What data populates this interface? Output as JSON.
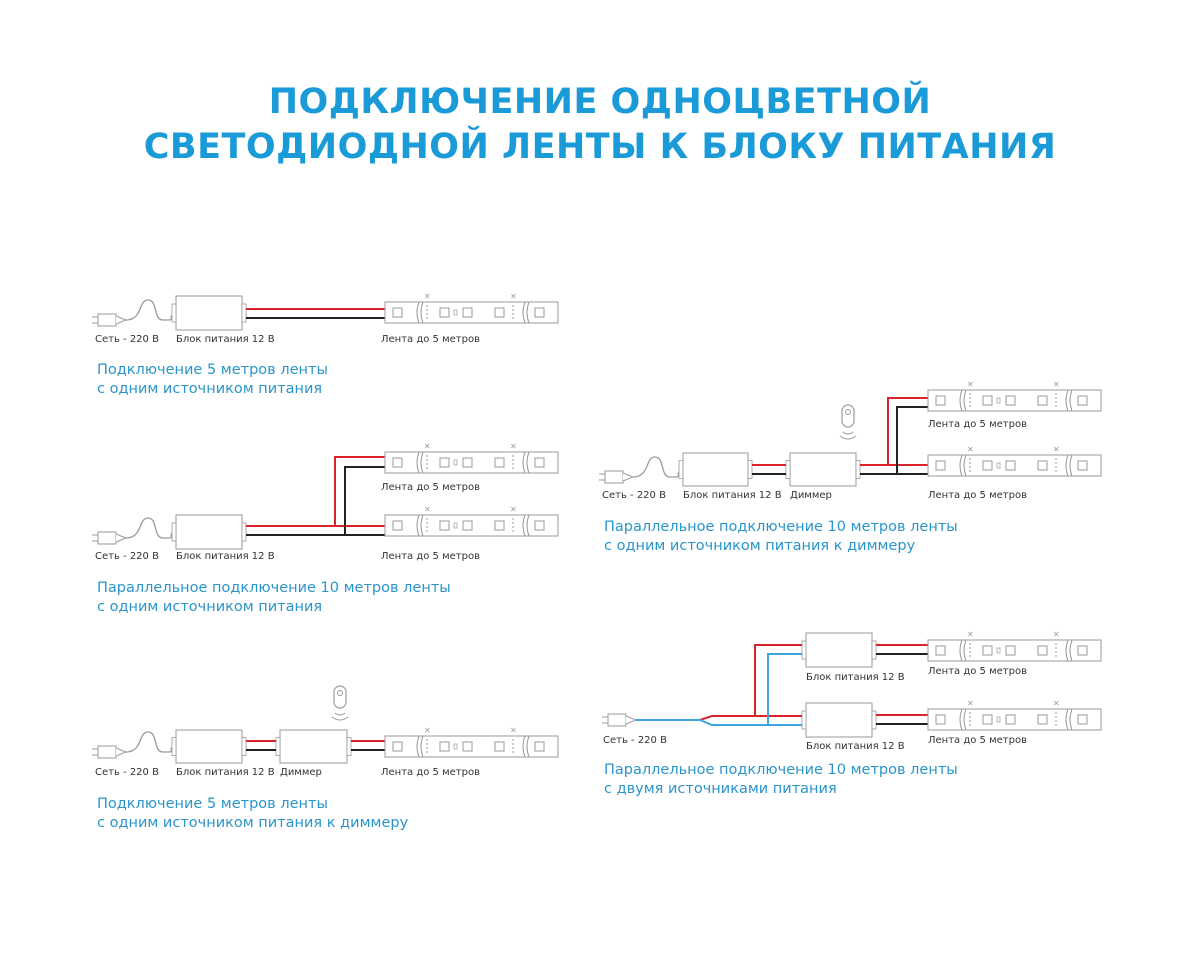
{
  "title": {
    "line1": "ПОДКЛЮЧЕНИЕ ОДНОЦВЕТНОЙ",
    "line2": "СВЕТОДИОДНОЙ ЛЕНТЫ К БЛОКУ ПИТАНИЯ"
  },
  "colors": {
    "accent": "#1a9ad6",
    "wire_positive": "#d8232a",
    "wire_negative": "#222222",
    "wire_neutral": "#3aa6dd"
  },
  "labels": {
    "mains": "Сеть - 220 В",
    "psu": "Блок питания 12 В",
    "dimmer": "Диммер",
    "strip": "Лента до 5 метров"
  },
  "diagrams": [
    {
      "caption1": "Подключение 5 метров ленты",
      "caption2": "с одним источником питания"
    },
    {
      "caption1": "Параллельное подключение 10 метров ленты",
      "caption2": "с одним источником питания"
    },
    {
      "caption1": "Подключение 5 метров ленты",
      "caption2": "с одним источником питания к диммеру"
    },
    {
      "caption1": "Параллельное подключение 10 метров ленты",
      "caption2": "с одним источником питания к диммеру"
    },
    {
      "caption1": "Параллельное подключение 10 метров ленты",
      "caption2": "с двумя источниками питания"
    }
  ]
}
